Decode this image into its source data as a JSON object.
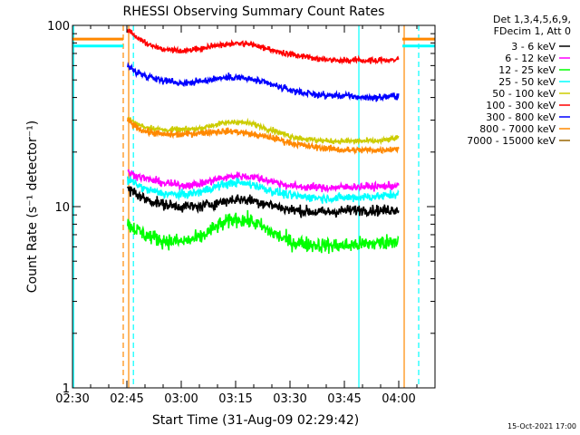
{
  "chart_data": {
    "type": "line",
    "title": "RHESSI Observing Summary Count Rates",
    "xlabel": "Start Time (31-Aug-09 02:29:42)",
    "ylabel": "Count Rate (s⁻¹ detector⁻¹)",
    "y_scale": "log",
    "ylim": [
      1,
      100
    ],
    "x_unit": "minutes after 02:30",
    "xlim": [
      0,
      100
    ],
    "x_ticks": [
      {
        "x": 0,
        "label": "02:30"
      },
      {
        "x": 15,
        "label": "02:45"
      },
      {
        "x": 30,
        "label": "03:00"
      },
      {
        "x": 45,
        "label": "03:15"
      },
      {
        "x": 60,
        "label": "03:30"
      },
      {
        "x": 75,
        "label": "03:45"
      },
      {
        "x": 90,
        "label": "04:00"
      }
    ],
    "y_ticks": [
      {
        "y": 1,
        "label": "1"
      },
      {
        "y": 10,
        "label": "10"
      },
      {
        "y": 100,
        "label": "100"
      }
    ],
    "legend_header": [
      "Det 1,3,4,5,6,9,",
      "FDecim 1, Att 0"
    ],
    "legend_position": "right",
    "x_knots": [
      15.2,
      17,
      20,
      25,
      30,
      35,
      40,
      45,
      50,
      55,
      60,
      65,
      70,
      75,
      80,
      85,
      90
    ],
    "series": [
      {
        "name": "3 - 6 keV",
        "color": "#000000",
        "noise": 0.05,
        "y": [
          12.5,
          12.0,
          11.0,
          10.3,
          10.0,
          10.0,
          10.5,
          11.0,
          10.8,
          10.2,
          9.6,
          9.4,
          9.3,
          9.5,
          9.6,
          9.5,
          9.7
        ]
      },
      {
        "name": "6 - 12 keV",
        "color": "#ff00ff",
        "noise": 0.035,
        "y": [
          15.5,
          15.0,
          14.3,
          13.5,
          13.1,
          13.3,
          14.2,
          14.8,
          14.6,
          13.8,
          13.0,
          12.8,
          12.7,
          12.8,
          12.9,
          12.9,
          13.1
        ]
      },
      {
        "name": "12 - 25 keV",
        "color": "#00ff00",
        "noise": 0.07,
        "y": [
          8.0,
          7.6,
          7.0,
          6.5,
          6.4,
          6.7,
          7.8,
          8.6,
          8.2,
          7.2,
          6.4,
          6.2,
          6.1,
          6.1,
          6.2,
          6.3,
          6.6
        ]
      },
      {
        "name": "25 - 50 keV",
        "color": "#00ffff",
        "noise": 0.04,
        "y": [
          14.0,
          13.5,
          12.5,
          11.8,
          11.6,
          12.0,
          13.0,
          13.6,
          13.2,
          12.2,
          11.5,
          11.3,
          11.1,
          11.2,
          11.3,
          11.4,
          11.8
        ]
      },
      {
        "name": "50 - 100 keV",
        "color": "#cccc00",
        "noise": 0.025,
        "y": [
          31,
          29,
          27.5,
          26.5,
          26.5,
          27,
          28.5,
          29.5,
          28.5,
          26.5,
          24.5,
          23.5,
          23.0,
          23.0,
          23.0,
          23.0,
          24.0
        ]
      },
      {
        "name": "100 - 300 keV",
        "color": "#ff0000",
        "noise": 0.025,
        "y": [
          95,
          88,
          80,
          74,
          72,
          74,
          78,
          80,
          78,
          73,
          69,
          67,
          65,
          64,
          64,
          64,
          65
        ]
      },
      {
        "name": "300 - 800 keV",
        "color": "#0000ff",
        "noise": 0.03,
        "y": [
          60,
          56,
          53,
          50,
          48,
          49,
          51,
          52,
          50,
          47,
          44,
          42,
          41,
          41,
          40,
          40,
          41
        ]
      },
      {
        "name": "800 - 7000 keV",
        "color": "#ff8800",
        "noise": 0.03,
        "y": [
          30,
          28,
          26,
          25,
          25,
          25.5,
          26,
          26,
          25,
          24,
          22.5,
          21.5,
          21,
          20.5,
          20.5,
          20.5,
          21
        ]
      },
      {
        "name": "7000 - 15000 keV",
        "color": "#996600",
        "noise": 0.03,
        "y": []
      }
    ],
    "pre_segment": {
      "x": [
        0,
        14
      ],
      "orange_level": 84,
      "cyan_level": 77
    },
    "post_segment": {
      "x": [
        91,
        100
      ],
      "orange_level": 84,
      "cyan_level": 77
    },
    "vertical_markers": [
      {
        "x": 14.0,
        "color": "#ff8800",
        "style": "dashed"
      },
      {
        "x": 15.5,
        "color": "#ff8800",
        "style": "solid"
      },
      {
        "x": 16.8,
        "color": "#00ffff",
        "style": "dashed"
      },
      {
        "x": 0.3,
        "color": "#00ffff",
        "style": "solid"
      },
      {
        "x": 79.0,
        "color": "#00ffff",
        "style": "solid"
      },
      {
        "x": 91.5,
        "color": "#ff8800",
        "style": "solid"
      },
      {
        "x": 95.5,
        "color": "#00ffff",
        "style": "dashed"
      }
    ]
  },
  "footer_date": "15-Oct-2021 17:00"
}
